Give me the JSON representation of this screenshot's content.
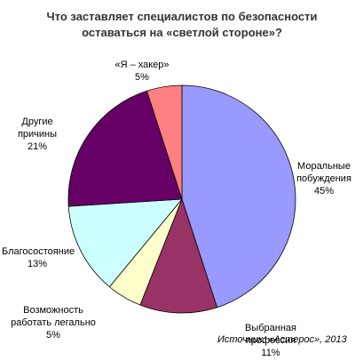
{
  "chart_data": {
    "type": "pie",
    "title": "Что заставляет специалистов по безопасности оставаться на «светлой стороне»?",
    "categories": [
      "Моральные побуждения",
      "Выбранная профессия",
      "Возможность работать легально",
      "Благосостояние",
      "Другие причины",
      "«Я – хакер»"
    ],
    "values": [
      45,
      11,
      5,
      13,
      21,
      5
    ],
    "value_labels": [
      "45%",
      "11%",
      "5%",
      "13%",
      "21%",
      "5%"
    ],
    "colors": [
      "#9999ff",
      "#993366",
      "#ffffcc",
      "#ccffff",
      "#660066",
      "#ff8080"
    ],
    "source": "Источник: «Астерос», 2013"
  }
}
